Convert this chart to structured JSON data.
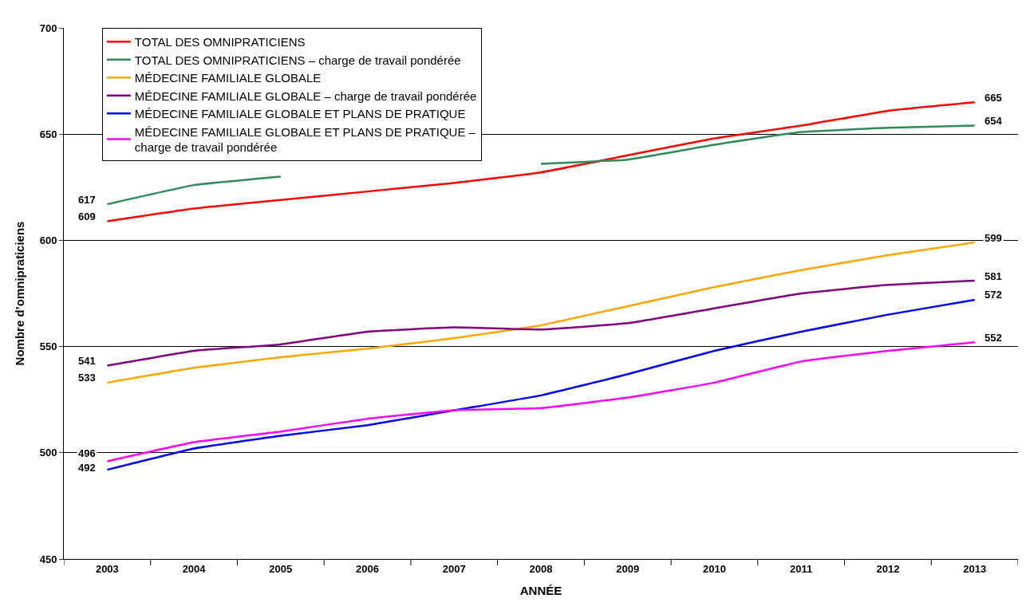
{
  "chart_data": {
    "type": "line",
    "xlabel": "ANNÉE",
    "ylabel": "Nombre d’omnipraticiens",
    "categories": [
      "2003",
      "2004",
      "2005",
      "2006",
      "2007",
      "2008",
      "2009",
      "2010",
      "2011",
      "2012",
      "2013"
    ],
    "ylim": [
      450,
      700
    ],
    "yticks": [
      450,
      500,
      550,
      600,
      650,
      700
    ],
    "grid": "y",
    "legend": "top left",
    "marker": "none",
    "line_style": "solid",
    "series": [
      {
        "name": "TOTAL DES OMNIPRATICIENS",
        "color": "#ff0000",
        "values": [
          609,
          615,
          619,
          623,
          627,
          632,
          640,
          648,
          654,
          661,
          665
        ],
        "value_labels": [
          "609",
          null,
          null,
          null,
          null,
          null,
          null,
          null,
          null,
          null,
          "665"
        ]
      },
      {
        "name": "TOTAL DES OMNIPRATICIENS – charge de travail pondérée",
        "color": "#2e8b57",
        "values": [
          617,
          626,
          630,
          null,
          null,
          636,
          638,
          645,
          651,
          653,
          654
        ],
        "value_labels": [
          "617",
          null,
          null,
          null,
          null,
          null,
          null,
          null,
          null,
          null,
          "654"
        ]
      },
      {
        "name": "MÉDECINE FAMILIALE GLOBALE",
        "color": "#ffa500",
        "values": [
          533,
          540,
          545,
          549,
          554,
          560,
          569,
          578,
          586,
          593,
          599
        ],
        "value_labels": [
          "533",
          null,
          null,
          null,
          null,
          null,
          null,
          null,
          null,
          null,
          "599"
        ]
      },
      {
        "name": "MÉDECINE FAMILIALE GLOBALE – charge de travail pondérée",
        "color": "#800080",
        "values": [
          541,
          548,
          551,
          557,
          559,
          558,
          561,
          568,
          575,
          579,
          581
        ],
        "value_labels": [
          "541",
          null,
          null,
          null,
          null,
          null,
          null,
          null,
          null,
          null,
          "581"
        ]
      },
      {
        "name": "MÉDECINE FAMILIALE GLOBALE ET PLANS DE PRATIQUE",
        "color": "#0000ff",
        "values": [
          492,
          502,
          508,
          513,
          520,
          527,
          537,
          548,
          557,
          565,
          572
        ],
        "value_labels": [
          "492",
          null,
          null,
          null,
          null,
          null,
          null,
          null,
          null,
          null,
          "572"
        ]
      },
      {
        "name": "MÉDECINE FAMILIALE GLOBALE ET PLANS DE PRATIQUE –\ncharge de travail pondérée",
        "color": "#ff00ff",
        "values": [
          496,
          505,
          510,
          516,
          520,
          521,
          526,
          533,
          543,
          548,
          552
        ],
        "value_labels": [
          "496",
          null,
          null,
          null,
          null,
          null,
          null,
          null,
          null,
          null,
          "552"
        ]
      }
    ]
  }
}
